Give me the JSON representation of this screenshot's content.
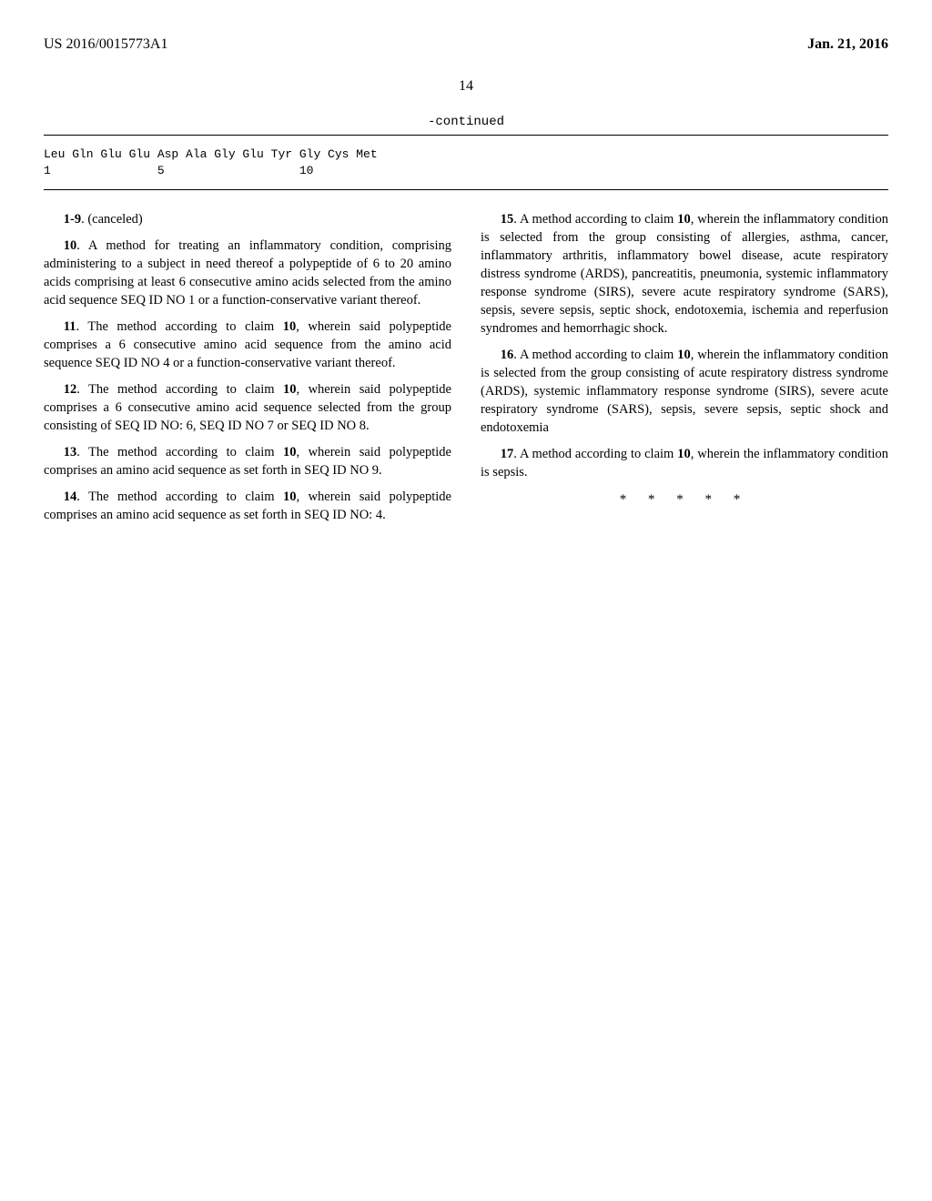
{
  "header": {
    "patent_id": "US 2016/0015773A1",
    "date": "Jan. 21, 2016"
  },
  "page_number": "14",
  "continued_label": "-continued",
  "sequence": {
    "line1": "Leu Gln Glu Glu Asp Ala Gly Glu Tyr Gly Cys Met",
    "line2": "1               5                   10"
  },
  "left_column": {
    "claim_canceled": {
      "range": "1-9",
      "text": ". (canceled)"
    },
    "claim10": {
      "num": "10",
      "text": ". A method for treating an inflammatory condition, comprising administering to a subject in need thereof a polypeptide of 6 to 20 amino acids comprising at least 6 consecutive amino acids selected from the amino acid sequence SEQ ID NO 1 or a function-conservative variant thereof."
    },
    "claim11": {
      "num": "11",
      "ref": "10",
      "text_a": ". The method according to claim ",
      "text_b": ", wherein said polypeptide comprises a 6 consecutive amino acid sequence from the amino acid sequence SEQ ID NO 4 or a function-conservative variant thereof."
    },
    "claim12": {
      "num": "12",
      "ref": "10",
      "text_a": ". The method according to claim ",
      "text_b": ", wherein said polypeptide comprises a 6 consecutive amino acid sequence selected from the group consisting of SEQ ID NO: 6, SEQ ID NO 7 or SEQ ID NO 8."
    },
    "claim13": {
      "num": "13",
      "ref": "10",
      "text_a": ". The method according to claim ",
      "text_b": ", wherein said polypeptide comprises an amino acid sequence as set forth in SEQ ID NO 9."
    },
    "claim14": {
      "num": "14",
      "ref": "10",
      "text_a": ". The method according to claim ",
      "text_b": ", wherein said polypeptide comprises an amino acid sequence as set forth in SEQ ID NO: 4."
    }
  },
  "right_column": {
    "claim15": {
      "num": "15",
      "ref": "10",
      "text_a": ". A method according to claim ",
      "text_b": ", wherein the inflammatory condition is selected from the group consisting of allergies, asthma, cancer, inflammatory arthritis, inflammatory bowel disease, acute respiratory distress syndrome (ARDS), pancreatitis, pneumonia, systemic inflammatory response syndrome (SIRS), severe acute respiratory syndrome (SARS), sepsis, severe sepsis, septic shock, endotoxemia, ischemia and reperfusion syndromes and hemorrhagic shock."
    },
    "claim16": {
      "num": "16",
      "ref": "10",
      "text_a": ". A method according to claim ",
      "text_b": ", wherein the inflammatory condition is selected from the group consisting of acute respiratory distress syndrome (ARDS), systemic inflammatory response syndrome (SIRS), severe acute respiratory syndrome (SARS), sepsis, severe sepsis, septic shock and endotoxemia"
    },
    "claim17": {
      "num": "17",
      "ref": "10",
      "text_a": ". A method according to claim ",
      "text_b": ", wherein the inflammatory condition is sepsis."
    },
    "stars": "* * * * *"
  }
}
